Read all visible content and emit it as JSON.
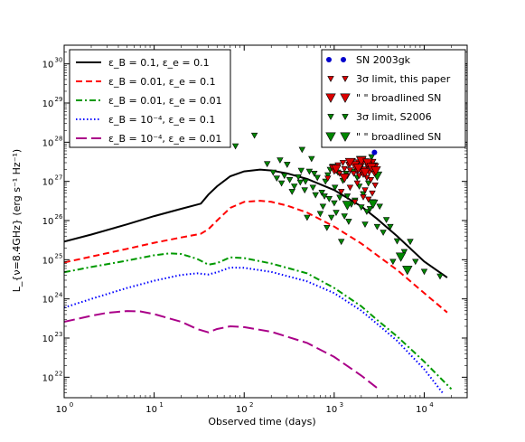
{
  "chart_data": {
    "type": "line",
    "xlabel": "Observed time (days)",
    "ylabel": "L_{ν=8.4GHz} (erg s⁻¹ Hz⁻¹)",
    "x_scale": "log",
    "y_scale": "log",
    "xlim": [
      1,
      30000
    ],
    "ylim": [
      3e+21,
      3e+30
    ],
    "grid": false,
    "x_ticks": [
      {
        "value": 1,
        "base": "10",
        "exp": "0"
      },
      {
        "value": 10,
        "base": "10",
        "exp": "1"
      },
      {
        "value": 100,
        "base": "10",
        "exp": "2"
      },
      {
        "value": 1000,
        "base": "10",
        "exp": "3"
      },
      {
        "value": 10000,
        "base": "10",
        "exp": "4"
      }
    ],
    "y_ticks": [
      {
        "value": 1e+22,
        "base": "10",
        "exp": "22"
      },
      {
        "value": 1e+23,
        "base": "10",
        "exp": "23"
      },
      {
        "value": 1e+24,
        "base": "10",
        "exp": "24"
      },
      {
        "value": 1e+25,
        "base": "10",
        "exp": "25"
      },
      {
        "value": 1e+26,
        "base": "10",
        "exp": "26"
      },
      {
        "value": 1e+27,
        "base": "10",
        "exp": "27"
      },
      {
        "value": 1e+28,
        "base": "10",
        "exp": "28"
      },
      {
        "value": 1e+29,
        "base": "10",
        "exp": "29"
      },
      {
        "value": 1e+30,
        "base": "10",
        "exp": "30"
      }
    ],
    "legend_models_position": "top-left",
    "legend_obs_position": "top-right",
    "series": [
      {
        "name": "ε_B = 0.1,  ε_e = 0.1",
        "color": "#000000",
        "style": "solid",
        "points": [
          [
            1,
            2.9e+25
          ],
          [
            2,
            4.4e+25
          ],
          [
            5,
            8e+25
          ],
          [
            10,
            1.3e+26
          ],
          [
            20,
            2e+26
          ],
          [
            33,
            2.7e+26
          ],
          [
            40,
            4.6e+26
          ],
          [
            50,
            7.5e+26
          ],
          [
            70,
            1.35e+27
          ],
          [
            100,
            1.8e+27
          ],
          [
            150,
            2e+27
          ],
          [
            200,
            1.9e+27
          ],
          [
            300,
            1.6e+27
          ],
          [
            500,
            1.15e+27
          ],
          [
            1000,
            6e+26
          ],
          [
            2000,
            2.3e+26
          ],
          [
            3000,
            1.1e+26
          ],
          [
            5000,
            4e+25
          ],
          [
            10000,
            9e+24
          ],
          [
            18000,
            3.5e+24
          ]
        ]
      },
      {
        "name": "ε_B = 0.01,  ε_e = 0.1",
        "color": "#ff0000",
        "style": "dashed",
        "points": [
          [
            1,
            8.5e+24
          ],
          [
            2,
            1.2e+25
          ],
          [
            5,
            1.9e+25
          ],
          [
            10,
            2.7e+25
          ],
          [
            20,
            3.7e+25
          ],
          [
            33,
            4.6e+25
          ],
          [
            40,
            6e+25
          ],
          [
            50,
            1e+26
          ],
          [
            70,
            2.1e+26
          ],
          [
            100,
            3e+26
          ],
          [
            150,
            3.2e+26
          ],
          [
            200,
            3e+26
          ],
          [
            300,
            2.4e+26
          ],
          [
            500,
            1.6e+26
          ],
          [
            1000,
            7e+25
          ],
          [
            2000,
            2.6e+25
          ],
          [
            3000,
            1.3e+25
          ],
          [
            5000,
            5.5e+24
          ],
          [
            10000,
            1.4e+24
          ],
          [
            18000,
            4.5e+23
          ]
        ]
      },
      {
        "name": "ε_B = 0.01,  ε_e = 0.01",
        "color": "#009900",
        "style": "dashdot",
        "points": [
          [
            1,
            4.8e+24
          ],
          [
            2,
            6.5e+24
          ],
          [
            5,
            9.5e+24
          ],
          [
            10,
            1.3e+25
          ],
          [
            15,
            1.45e+25
          ],
          [
            20,
            1.4e+25
          ],
          [
            30,
            1.05e+25
          ],
          [
            40,
            7.5e+24
          ],
          [
            50,
            8.2e+24
          ],
          [
            70,
            1.15e+25
          ],
          [
            100,
            1.1e+25
          ],
          [
            200,
            8e+24
          ],
          [
            500,
            4.5e+24
          ],
          [
            1000,
            1.9e+24
          ],
          [
            2000,
            6.5e+23
          ],
          [
            3000,
            2.9e+23
          ],
          [
            5000,
            1.1e+23
          ],
          [
            10000,
            2.5e+22
          ],
          [
            20000,
            5e+21
          ]
        ]
      },
      {
        "name": "ε_B = 10⁻⁴,  ε_e = 0.1",
        "color": "#0000ff",
        "style": "dotted",
        "points": [
          [
            1,
            6e+23
          ],
          [
            2,
            1e+24
          ],
          [
            5,
            1.9e+24
          ],
          [
            10,
            2.9e+24
          ],
          [
            20,
            4.1e+24
          ],
          [
            30,
            4.5e+24
          ],
          [
            40,
            4.2e+24
          ],
          [
            50,
            4.8e+24
          ],
          [
            70,
            6.3e+24
          ],
          [
            100,
            6.2e+24
          ],
          [
            200,
            4.9e+24
          ],
          [
            500,
            2.8e+24
          ],
          [
            1000,
            1.4e+24
          ],
          [
            2000,
            5e+23
          ],
          [
            3000,
            2.3e+23
          ],
          [
            5000,
            8.5e+22
          ],
          [
            10000,
            1.6e+22
          ],
          [
            16000,
            4e+21
          ]
        ]
      },
      {
        "name": "ε_B = 10⁻⁴,  ε_e = 0.01",
        "color": "#aa0088",
        "style": "longdash",
        "points": [
          [
            1,
            2.6e+23
          ],
          [
            2,
            3.7e+23
          ],
          [
            3,
            4.4e+23
          ],
          [
            5,
            4.9e+23
          ],
          [
            7,
            4.8e+23
          ],
          [
            10,
            4.1e+23
          ],
          [
            20,
            2.6e+23
          ],
          [
            30,
            1.7e+23
          ],
          [
            40,
            1.4e+23
          ],
          [
            50,
            1.7e+23
          ],
          [
            70,
            2e+23
          ],
          [
            100,
            1.9e+23
          ],
          [
            200,
            1.45e+23
          ],
          [
            500,
            7.5e+22
          ],
          [
            1000,
            3.3e+22
          ],
          [
            2000,
            1.1e+22
          ],
          [
            3000,
            5.3e+21
          ]
        ]
      }
    ],
    "observations": {
      "sn2003gk": {
        "label": "SN 2003gk",
        "color": "#0000cc",
        "points": [
          [
            2800,
            5.5e+27
          ]
        ]
      },
      "limit_this_paper": {
        "label": "3σ limit, this paper",
        "color": "#dd0000",
        "points": [
          [
            850,
            1.2e+27
          ],
          [
            950,
            2.3e+27
          ],
          [
            1000,
            1.8e+27
          ],
          [
            1100,
            2.6e+27
          ],
          [
            1150,
            1.6e+27
          ],
          [
            1250,
            3e+27
          ],
          [
            1300,
            2.1e+27
          ],
          [
            1400,
            1.4e+27
          ],
          [
            1450,
            2.7e+27
          ],
          [
            1500,
            1.95e+27
          ],
          [
            1600,
            3.3e+27
          ],
          [
            1650,
            1.6e+27
          ],
          [
            1700,
            2.4e+27
          ],
          [
            1800,
            1.9e+27
          ],
          [
            1850,
            3.1e+27
          ],
          [
            1900,
            1.4e+27
          ],
          [
            1950,
            2.2e+27
          ],
          [
            2000,
            1.75e+27
          ],
          [
            2050,
            2.8e+27
          ],
          [
            2100,
            1.5e+27
          ],
          [
            2150,
            2.05e+27
          ],
          [
            2250,
            3.3e+27
          ],
          [
            2300,
            1.25e+27
          ],
          [
            2350,
            2.4e+27
          ],
          [
            2450,
            1.7e+27
          ],
          [
            2500,
            2.9e+27
          ],
          [
            2550,
            1.1e+27
          ],
          [
            2600,
            2.1e+27
          ],
          [
            2700,
            3.2e+27
          ],
          [
            2800,
            1.6e+27
          ],
          [
            2900,
            2.5e+27
          ],
          [
            1200,
            5.5e+26
          ],
          [
            1500,
            7e+26
          ],
          [
            1800,
            9e+26
          ],
          [
            2100,
            4e+26
          ],
          [
            2400,
            3.5e+26
          ],
          [
            2650,
            5e+26
          ],
          [
            2850,
            8e+26
          ],
          [
            1700,
            3e+26
          ],
          [
            2200,
            6e+26
          ]
        ]
      },
      "limit_this_paper_broadlined": {
        "label": "\"   \" broadlined SN",
        "color": "#dd0000",
        "points": [
          [
            1050,
            2.1e+27
          ],
          [
            1300,
            1.25e+27
          ],
          [
            1700,
            2.6e+27
          ],
          [
            2000,
            3.4e+27
          ],
          [
            2200,
            1.7e+27
          ],
          [
            2350,
            3e+27
          ],
          [
            2600,
            2.3e+27
          ],
          [
            1500,
            3.1e+27
          ],
          [
            2900,
            1.9e+27
          ],
          [
            1850,
            2.2e+27
          ]
        ]
      },
      "limit_s2006": {
        "label": "3σ limit, S2006",
        "color": "#008800",
        "points": [
          [
            80,
            8e+27
          ],
          [
            130,
            1.5e+28
          ],
          [
            180,
            2.8e+27
          ],
          [
            210,
            1.7e+27
          ],
          [
            230,
            1.2e+27
          ],
          [
            260,
            9e+26
          ],
          [
            280,
            1.4e+27
          ],
          [
            300,
            2.7e+27
          ],
          [
            320,
            1.1e+27
          ],
          [
            340,
            5.5e+26
          ],
          [
            360,
            7.5e+26
          ],
          [
            400,
            1.3e+27
          ],
          [
            420,
            9.5e+26
          ],
          [
            430,
            1.9e+27
          ],
          [
            470,
            6e+26
          ],
          [
            480,
            1e+27
          ],
          [
            500,
            1.2e+26
          ],
          [
            530,
            1.8e+27
          ],
          [
            580,
            7e+26
          ],
          [
            600,
            1.6e+27
          ],
          [
            620,
            4.5e+26
          ],
          [
            650,
            1.25e+27
          ],
          [
            700,
            1.5e+26
          ],
          [
            730,
            5.2e+26
          ],
          [
            750,
            2.3e+26
          ],
          [
            780,
            4.2e+26
          ],
          [
            800,
            1e+27
          ],
          [
            830,
            6.6e+25
          ],
          [
            850,
            1.45e+27
          ],
          [
            880,
            3.6e+26
          ],
          [
            900,
            2e+27
          ],
          [
            930,
            1.2e+26
          ],
          [
            960,
            2.4e+27
          ],
          [
            1000,
            2.8e+26
          ],
          [
            1020,
            7e+26
          ],
          [
            1050,
            1.6e+26
          ],
          [
            1100,
            1.7e+27
          ],
          [
            1150,
            3.9e+26
          ],
          [
            1200,
            2.9e+25
          ],
          [
            1250,
            1.05e+27
          ],
          [
            1300,
            1.3e+26
          ],
          [
            1350,
            1.6e+27
          ],
          [
            1400,
            4.2e+26
          ],
          [
            1450,
            9.5e+25
          ],
          [
            1500,
            3e+27
          ],
          [
            1550,
            2.6e+26
          ],
          [
            1600,
            1.8e+27
          ],
          [
            1700,
            3.3e+26
          ],
          [
            1800,
            1.25e+27
          ],
          [
            1900,
            7.5e+26
          ],
          [
            2000,
            2.2e+26
          ],
          [
            2100,
            4.8e+26
          ],
          [
            2200,
            8e+25
          ],
          [
            2300,
            1.7e+26
          ],
          [
            2400,
            9e+26
          ],
          [
            2500,
            2e+26
          ],
          [
            2600,
            4.2e+27
          ],
          [
            2700,
            3e+26
          ],
          [
            2800,
            2.6e+27
          ],
          [
            3000,
            7e+25
          ],
          [
            3200,
            2.3e+26
          ],
          [
            3500,
            5e+25
          ],
          [
            3800,
            1.05e+26
          ],
          [
            4200,
            7e+25
          ],
          [
            4500,
            9e+24
          ],
          [
            5000,
            3e+25
          ],
          [
            6000,
            1.6e+25
          ],
          [
            7000,
            2.9e+25
          ],
          [
            8000,
            9e+24
          ],
          [
            10000,
            5e+24
          ],
          [
            15000,
            3.8e+24
          ],
          [
            250,
            3.5e+27
          ],
          [
            440,
            6.5e+27
          ],
          [
            560,
            3.8e+27
          ]
        ]
      },
      "limit_s2006_broadlined": {
        "label": "\"   \" broadlined SN",
        "color": "#008800",
        "points": [
          [
            2000,
            3.5e+27
          ],
          [
            2700,
            2.7e+26
          ],
          [
            3000,
            1.4e+27
          ],
          [
            5500,
            1.2e+25
          ],
          [
            6500,
            5.5e+24
          ],
          [
            1400,
            2.5e+26
          ]
        ]
      }
    }
  }
}
